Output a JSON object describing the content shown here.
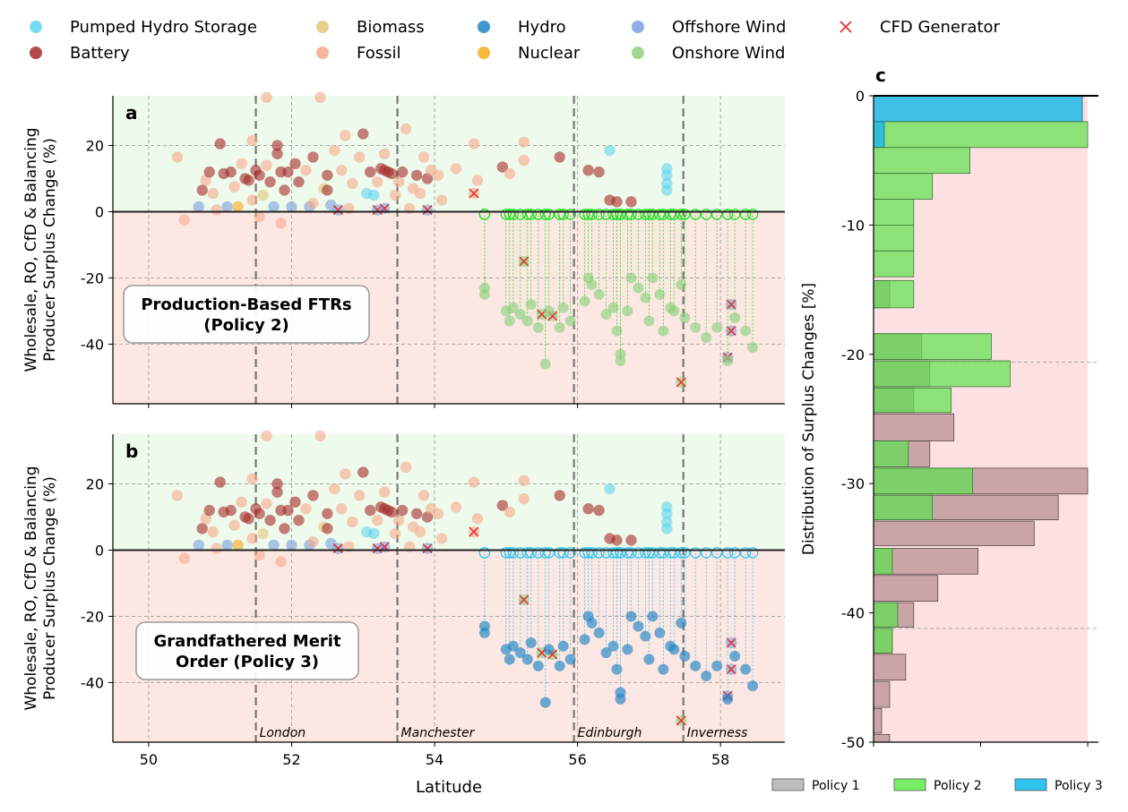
{
  "chart_data": {
    "legend_top": [
      {
        "label": "Pumped Hydro Storage",
        "color": "#5fd3f0",
        "marker": "circle"
      },
      {
        "label": "Battery",
        "color": "#a52a2a",
        "marker": "circle"
      },
      {
        "label": "Biomass",
        "color": "#e3c77a",
        "marker": "circle"
      },
      {
        "label": "Fossil",
        "color": "#f6a98a",
        "marker": "circle"
      },
      {
        "label": "Hydro",
        "color": "#1f84c6",
        "marker": "circle"
      },
      {
        "label": "Nuclear",
        "color": "#f9a91b",
        "marker": "circle"
      },
      {
        "label": "Offshore Wind",
        "color": "#7b9ee0",
        "marker": "circle"
      },
      {
        "label": "Onshore Wind",
        "color": "#8fd17f",
        "marker": "circle"
      },
      {
        "label": "CFD Generator",
        "color": "#e8322f",
        "marker": "x"
      }
    ],
    "panels": [
      {
        "id": "a",
        "type": "scatter",
        "policy_box": "Production-Based FTRs\n(Policy 2)",
        "ylabel": "Wholesale, RO, CfD & Balancing\nProducer Surplus Change (%)",
        "xlim": [
          49.5,
          58.9
        ],
        "ylim": [
          -58,
          35
        ],
        "yticks": [
          20,
          0,
          -20,
          -40
        ],
        "moved_color": "#22e022",
        "moved_series_hollow": true
      },
      {
        "id": "b",
        "type": "scatter",
        "policy_box": "Grandfathered Merit\nOrder (Policy 3)",
        "ylabel": "Wholesale, RO, CfD & Balancing\nProducer Surplus Change (%)",
        "xlabel": "Latitude",
        "xlim": [
          49.5,
          58.9
        ],
        "ylim": [
          -58,
          35
        ],
        "xticks": [
          50,
          52,
          54,
          56,
          58
        ],
        "yticks": [
          20,
          0,
          -20,
          -40
        ],
        "moved_color": "#35c8f0",
        "moved_series_hollow": true
      }
    ],
    "city_lines": [
      {
        "name": "London",
        "lat": 51.5
      },
      {
        "name": "Manchester",
        "lat": 53.48
      },
      {
        "name": "Edinburgh",
        "lat": 55.95
      },
      {
        "name": "Inverness",
        "lat": 57.48
      }
    ],
    "hist": {
      "id": "c",
      "type": "bar",
      "orientation": "horizontal",
      "ylabel": "Distribution of Surplus Changes [%]",
      "ylim": [
        -50,
        0
      ],
      "yticks": [
        0,
        -10,
        -20,
        -30,
        -40,
        -50
      ],
      "xlim": [
        0,
        42
      ],
      "dashed_levels": [
        -20.6,
        -41.2
      ],
      "bins": [
        {
          "lo": -2,
          "hi": 0,
          "policy1": 0,
          "policy2": 0,
          "policy3": 39
        },
        {
          "lo": -4,
          "hi": -2,
          "policy1": 0,
          "policy2": 40,
          "policy3": 2
        },
        {
          "lo": -6,
          "hi": -4,
          "policy1": 0,
          "policy2": 18,
          "policy3": 0
        },
        {
          "lo": -8,
          "hi": -6,
          "policy1": 0,
          "policy2": 11,
          "policy3": 0
        },
        {
          "lo": -10,
          "hi": -8,
          "policy1": 0,
          "policy2": 7.5,
          "policy3": 0
        },
        {
          "lo": -12,
          "hi": -10,
          "policy1": 0,
          "policy2": 7.5,
          "policy3": 0
        },
        {
          "lo": -14,
          "hi": -12,
          "policy1": 0,
          "policy2": 7.5,
          "policy3": 0
        },
        {
          "lo": -16.4,
          "hi": -14.3,
          "policy1": 3,
          "policy2": 7.5,
          "policy3": 0
        },
        {
          "lo": -20.4,
          "hi": -18.4,
          "policy1": 9,
          "policy2": 22,
          "policy3": 0
        },
        {
          "lo": -22.5,
          "hi": -20.5,
          "policy1": 10.5,
          "policy2": 25.5,
          "policy3": 0
        },
        {
          "lo": -24.5,
          "hi": -22.6,
          "policy1": 7.5,
          "policy2": 14.5,
          "policy3": 0
        },
        {
          "lo": -26.7,
          "hi": -24.6,
          "policy1": 15,
          "policy2": 0,
          "policy3": 0
        },
        {
          "lo": -28.7,
          "hi": -26.7,
          "policy1": 10.5,
          "policy2": 6.5,
          "policy3": 0
        },
        {
          "lo": -30.8,
          "hi": -28.8,
          "policy1": 40,
          "policy2": 18.5,
          "policy3": 0
        },
        {
          "lo": -32.8,
          "hi": -30.9,
          "policy1": 34.5,
          "policy2": 11,
          "policy3": 0
        },
        {
          "lo": -34.8,
          "hi": -32.9,
          "policy1": 30,
          "policy2": 0,
          "policy3": 0
        },
        {
          "lo": -37,
          "hi": -35,
          "policy1": 19.5,
          "policy2": 3.5,
          "policy3": 0
        },
        {
          "lo": -39.1,
          "hi": -37.1,
          "policy1": 12,
          "policy2": 0,
          "policy3": 0
        },
        {
          "lo": -41.1,
          "hi": -39.2,
          "policy1": 7.5,
          "policy2": 4.5,
          "policy3": 0
        },
        {
          "lo": -43.1,
          "hi": -41.2,
          "policy1": 3.5,
          "policy2": 3.5,
          "policy3": 0
        },
        {
          "lo": -45.2,
          "hi": -43.2,
          "policy1": 6,
          "policy2": 0,
          "policy3": 0
        },
        {
          "lo": -47.3,
          "hi": -45.3,
          "policy1": 3,
          "policy2": 0,
          "policy3": 0
        },
        {
          "lo": -49.3,
          "hi": -47.4,
          "policy1": 1.5,
          "policy2": 0,
          "policy3": 0
        },
        {
          "lo": -50,
          "hi": -49.4,
          "policy1": 3,
          "policy2": 0,
          "policy3": 0
        }
      ],
      "legend": [
        {
          "label": "Policy 1",
          "color": "#bdbdbd"
        },
        {
          "label": "Policy 2",
          "color": "#77ee66"
        },
        {
          "label": "Policy 3",
          "color": "#2ec5ef"
        }
      ]
    },
    "points": [
      {
        "x": 50.4,
        "y": 16.5,
        "t": "Fossil"
      },
      {
        "x": 50.5,
        "y": -2.5,
        "t": "Fossil"
      },
      {
        "x": 50.7,
        "y": 1.5,
        "t": "Offshore Wind"
      },
      {
        "x": 50.75,
        "y": 6.5,
        "t": "Battery"
      },
      {
        "x": 50.8,
        "y": 9.5,
        "t": "Fossil"
      },
      {
        "x": 50.85,
        "y": 12,
        "t": "Battery"
      },
      {
        "x": 50.9,
        "y": 5.5,
        "t": "Fossil"
      },
      {
        "x": 50.95,
        "y": 0.5,
        "t": "Fossil"
      },
      {
        "x": 51.0,
        "y": 20.5,
        "t": "Battery"
      },
      {
        "x": 51.05,
        "y": 11.5,
        "t": "Battery"
      },
      {
        "x": 51.1,
        "y": 1.5,
        "t": "Offshore Wind"
      },
      {
        "x": 51.15,
        "y": 12,
        "t": "Battery"
      },
      {
        "x": 51.2,
        "y": 7.5,
        "t": "Fossil"
      },
      {
        "x": 51.25,
        "y": 1.5,
        "t": "Nuclear"
      },
      {
        "x": 51.3,
        "y": 14.5,
        "t": "Fossil"
      },
      {
        "x": 51.35,
        "y": 10,
        "t": "Battery"
      },
      {
        "x": 51.4,
        "y": 9.5,
        "t": "Battery"
      },
      {
        "x": 51.45,
        "y": 21.5,
        "t": "Fossil"
      },
      {
        "x": 51.45,
        "y": 3.5,
        "t": "Fossil"
      },
      {
        "x": 51.5,
        "y": 12.5,
        "t": "Battery"
      },
      {
        "x": 51.55,
        "y": 11,
        "t": "Battery"
      },
      {
        "x": 51.55,
        "y": -1.5,
        "t": "Fossil"
      },
      {
        "x": 51.6,
        "y": 5,
        "t": "Biomass"
      },
      {
        "x": 51.65,
        "y": 34.5,
        "t": "Fossil"
      },
      {
        "x": 51.65,
        "y": 14,
        "t": "Fossil"
      },
      {
        "x": 51.7,
        "y": 9,
        "t": "Battery"
      },
      {
        "x": 51.75,
        "y": 1.5,
        "t": "Offshore Wind"
      },
      {
        "x": 51.8,
        "y": 20,
        "t": "Battery"
      },
      {
        "x": 51.8,
        "y": 17.5,
        "t": "Battery"
      },
      {
        "x": 51.85,
        "y": 12,
        "t": "Battery"
      },
      {
        "x": 51.85,
        "y": -3.5,
        "t": "Fossil"
      },
      {
        "x": 51.9,
        "y": 6.5,
        "t": "Battery"
      },
      {
        "x": 51.95,
        "y": 12,
        "t": "Battery"
      },
      {
        "x": 52.0,
        "y": 1.5,
        "t": "Offshore Wind"
      },
      {
        "x": 52.05,
        "y": 14.5,
        "t": "Battery"
      },
      {
        "x": 52.1,
        "y": 9,
        "t": "Battery"
      },
      {
        "x": 52.2,
        "y": 12.5,
        "t": "Fossil"
      },
      {
        "x": 52.25,
        "y": 1.5,
        "t": "Offshore Wind"
      },
      {
        "x": 52.3,
        "y": 16.5,
        "t": "Battery"
      },
      {
        "x": 52.3,
        "y": 2.5,
        "t": "Fossil"
      },
      {
        "x": 52.4,
        "y": 34.5,
        "t": "Fossil"
      },
      {
        "x": 52.45,
        "y": 7,
        "t": "Biomass"
      },
      {
        "x": 52.5,
        "y": 11,
        "t": "Battery"
      },
      {
        "x": 52.5,
        "y": 6.5,
        "t": "Battery"
      },
      {
        "x": 52.55,
        "y": 2,
        "t": "Offshore Wind"
      },
      {
        "x": 52.6,
        "y": 18.5,
        "t": "Fossil"
      },
      {
        "x": 52.7,
        "y": 12.5,
        "t": "Fossil"
      },
      {
        "x": 52.75,
        "y": 23,
        "t": "Fossil"
      },
      {
        "x": 52.8,
        "y": 1,
        "t": "Fossil"
      },
      {
        "x": 52.85,
        "y": 8.5,
        "t": "Fossil"
      },
      {
        "x": 52.95,
        "y": 16.5,
        "t": "Fossil"
      },
      {
        "x": 53.0,
        "y": 23.5,
        "t": "Battery"
      },
      {
        "x": 53.05,
        "y": 5.5,
        "t": "Pumped Hydro Storage"
      },
      {
        "x": 53.1,
        "y": 12,
        "t": "Battery"
      },
      {
        "x": 53.15,
        "y": 5,
        "t": "Pumped Hydro Storage"
      },
      {
        "x": 53.2,
        "y": 9,
        "t": "Fossil"
      },
      {
        "x": 53.25,
        "y": 13,
        "t": "Battery"
      },
      {
        "x": 53.3,
        "y": 12.5,
        "t": "Battery"
      },
      {
        "x": 53.3,
        "y": 17.5,
        "t": "Fossil"
      },
      {
        "x": 53.35,
        "y": 12,
        "t": "Battery"
      },
      {
        "x": 53.4,
        "y": 11.5,
        "t": "Battery"
      },
      {
        "x": 53.45,
        "y": 5,
        "t": "Fossil"
      },
      {
        "x": 53.5,
        "y": 9,
        "t": "Fossil"
      },
      {
        "x": 53.55,
        "y": 12,
        "t": "Battery"
      },
      {
        "x": 53.6,
        "y": 25,
        "t": "Fossil"
      },
      {
        "x": 53.65,
        "y": 1,
        "t": "Fossil"
      },
      {
        "x": 53.7,
        "y": 7,
        "t": "Fossil"
      },
      {
        "x": 53.75,
        "y": 11,
        "t": "Battery"
      },
      {
        "x": 53.8,
        "y": 5.5,
        "t": "Fossil"
      },
      {
        "x": 53.85,
        "y": 16.5,
        "t": "Fossil"
      },
      {
        "x": 53.9,
        "y": 10,
        "t": "Battery"
      },
      {
        "x": 53.95,
        "y": 12.5,
        "t": "Fossil"
      },
      {
        "x": 54.05,
        "y": 11,
        "t": "Fossil"
      },
      {
        "x": 54.1,
        "y": 3.5,
        "t": "Fossil"
      },
      {
        "x": 54.3,
        "y": 13,
        "t": "Fossil"
      },
      {
        "x": 54.55,
        "y": 20.5,
        "t": "Fossil"
      },
      {
        "x": 54.6,
        "y": 9.5,
        "t": "Fossil"
      },
      {
        "x": 54.95,
        "y": 13.5,
        "t": "Battery"
      },
      {
        "x": 55.05,
        "y": 11.5,
        "t": "Fossil"
      },
      {
        "x": 55.25,
        "y": 15.5,
        "t": "Fossil"
      },
      {
        "x": 55.25,
        "y": 21,
        "t": "Fossil"
      },
      {
        "x": 55.75,
        "y": 16.5,
        "t": "Battery"
      },
      {
        "x": 56.15,
        "y": 12.5,
        "t": "Battery"
      },
      {
        "x": 56.3,
        "y": 12,
        "t": "Battery"
      },
      {
        "x": 56.45,
        "y": 18.5,
        "t": "Pumped Hydro Storage"
      },
      {
        "x": 56.45,
        "y": 3.5,
        "t": "Battery"
      },
      {
        "x": 56.55,
        "y": 3,
        "t": "Battery"
      },
      {
        "x": 56.75,
        "y": 3,
        "t": "Battery"
      },
      {
        "x": 57.25,
        "y": 13,
        "t": "Pumped Hydro Storage"
      },
      {
        "x": 57.25,
        "y": 11,
        "t": "Pumped Hydro Storage"
      },
      {
        "x": 57.25,
        "y": 8.5,
        "t": "Pumped Hydro Storage"
      },
      {
        "x": 57.25,
        "y": 6.5,
        "t": "Pumped Hydro Storage"
      },
      {
        "x": 52.65,
        "y": 0.5,
        "t": "Offshore Wind",
        "cfd": true
      },
      {
        "x": 53.2,
        "y": 0.5,
        "t": "Offshore Wind",
        "cfd": true
      },
      {
        "x": 53.3,
        "y": 1,
        "t": "Offshore Wind",
        "cfd": true
      },
      {
        "x": 53.9,
        "y": 0.5,
        "t": "Offshore Wind",
        "cfd": true
      },
      {
        "x": 54.55,
        "y": 5.5,
        "t": "Fossil",
        "cfd": true
      },
      {
        "x": 55.25,
        "y": -15,
        "t": "Onshore Wind",
        "cfd": true
      },
      {
        "x": 55.5,
        "y": -31,
        "t": "Onshore Wind",
        "cfd": true
      },
      {
        "x": 55.65,
        "y": -31.5,
        "t": "Onshore Wind",
        "cfd": true
      },
      {
        "x": 57.45,
        "y": -51.5,
        "t": "Onshore Wind",
        "cfd": true
      },
      {
        "x": 58.15,
        "y": -28,
        "t": "Offshore Wind",
        "cfd": true
      },
      {
        "x": 58.15,
        "y": -36,
        "t": "Offshore Wind",
        "cfd": true
      },
      {
        "x": 58.1,
        "y": -44,
        "t": "Offshore Wind",
        "cfd": true
      }
    ],
    "moved_points": [
      {
        "x": 54.7,
        "y": -23
      },
      {
        "x": 54.7,
        "y": -25
      },
      {
        "x": 55.0,
        "y": -30
      },
      {
        "x": 55.05,
        "y": -33
      },
      {
        "x": 55.1,
        "y": -29
      },
      {
        "x": 55.2,
        "y": -31
      },
      {
        "x": 55.3,
        "y": -33
      },
      {
        "x": 55.35,
        "y": -28
      },
      {
        "x": 55.45,
        "y": -35
      },
      {
        "x": 55.55,
        "y": -46
      },
      {
        "x": 55.6,
        "y": -30
      },
      {
        "x": 55.75,
        "y": -35
      },
      {
        "x": 55.8,
        "y": -29
      },
      {
        "x": 55.9,
        "y": -33
      },
      {
        "x": 56.1,
        "y": -27
      },
      {
        "x": 56.15,
        "y": -20
      },
      {
        "x": 56.2,
        "y": -22
      },
      {
        "x": 56.3,
        "y": -25
      },
      {
        "x": 56.4,
        "y": -31
      },
      {
        "x": 56.5,
        "y": -29
      },
      {
        "x": 56.55,
        "y": -36
      },
      {
        "x": 56.6,
        "y": -43
      },
      {
        "x": 56.6,
        "y": -45
      },
      {
        "x": 56.7,
        "y": -30
      },
      {
        "x": 56.75,
        "y": -20
      },
      {
        "x": 56.85,
        "y": -23
      },
      {
        "x": 56.95,
        "y": -26
      },
      {
        "x": 57.0,
        "y": -33
      },
      {
        "x": 57.05,
        "y": -20
      },
      {
        "x": 57.15,
        "y": -25
      },
      {
        "x": 57.2,
        "y": -36
      },
      {
        "x": 57.3,
        "y": -29
      },
      {
        "x": 57.35,
        "y": -30
      },
      {
        "x": 57.45,
        "y": -22
      },
      {
        "x": 57.5,
        "y": -32
      },
      {
        "x": 57.65,
        "y": -35
      },
      {
        "x": 57.8,
        "y": -38
      },
      {
        "x": 57.95,
        "y": -35
      },
      {
        "x": 58.1,
        "y": -45
      },
      {
        "x": 58.2,
        "y": -32
      },
      {
        "x": 58.35,
        "y": -36
      },
      {
        "x": 58.45,
        "y": -41
      }
    ]
  }
}
